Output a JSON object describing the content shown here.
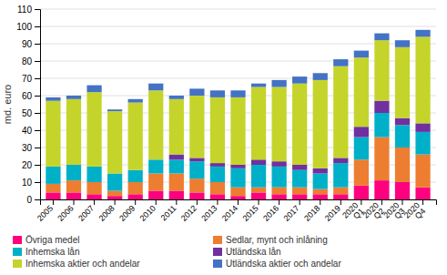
{
  "chart_data": {
    "type": "bar",
    "stacked": true,
    "categories": [
      "2005",
      "2006",
      "2007",
      "2008",
      "2009",
      "2010",
      "2011",
      "2012",
      "2013",
      "2014",
      "2015",
      "2016",
      "2017",
      "2018",
      "2019",
      "2020\nQ1",
      "2020\nQ2",
      "2020\nQ3",
      "2020\nQ4"
    ],
    "series": [
      {
        "name": "Övriga medel",
        "color": "#FF007F",
        "values": [
          4,
          4,
          3,
          2,
          3,
          5,
          5,
          4,
          3,
          2,
          4,
          3,
          3,
          3,
          3,
          8,
          11,
          10,
          7
        ]
      },
      {
        "name": "Sedlar, mynt och inlåning",
        "color": "#ED7D31",
        "values": [
          5,
          7,
          7,
          3,
          7,
          10,
          10,
          8,
          7,
          5,
          3,
          4,
          4,
          3,
          4,
          15,
          25,
          20,
          19
        ]
      },
      {
        "name": "Inhemska lån",
        "color": "#00B0C8",
        "values": [
          10,
          9,
          9,
          10,
          7,
          8,
          8,
          10,
          9,
          11,
          13,
          12,
          10,
          9,
          14,
          13,
          14,
          13,
          13
        ]
      },
      {
        "name": "Utländska lån",
        "color": "#7030A0",
        "values": [
          0,
          0,
          0,
          0,
          0,
          0,
          3,
          2,
          2,
          2,
          3,
          3,
          3,
          3,
          3,
          6,
          7,
          4,
          5
        ]
      },
      {
        "name": "Inhemska aktier och andelar",
        "color": "#C5D42A",
        "values": [
          38,
          38,
          43,
          36,
          39,
          40,
          32,
          36,
          38,
          39,
          42,
          43,
          47,
          51,
          53,
          40,
          35,
          41,
          50
        ]
      },
      {
        "name": "Utländska aktier och andelar",
        "color": "#4472C4",
        "values": [
          2,
          2,
          4,
          1,
          2,
          4,
          2,
          4,
          4,
          4,
          2,
          4,
          4,
          4,
          4,
          4,
          4,
          4,
          4
        ]
      }
    ],
    "ylabel": "md. euro",
    "ylim": [
      0,
      110
    ],
    "yticks": [
      0,
      10,
      20,
      30,
      40,
      50,
      60,
      70,
      80,
      90,
      100,
      110
    ],
    "grid": true,
    "legend": "bottom"
  }
}
